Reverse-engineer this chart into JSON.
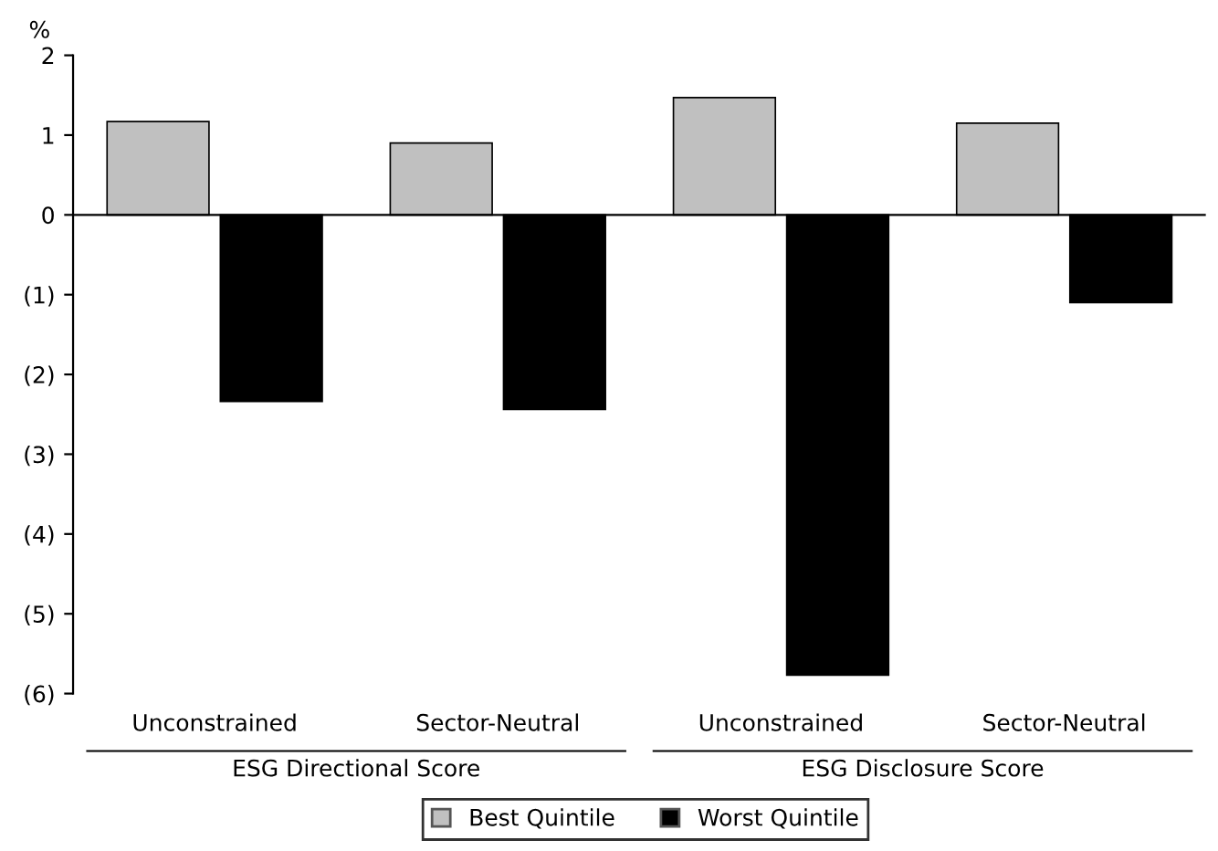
{
  "chart_data": {
    "type": "bar",
    "ylabel": "%",
    "categories": [
      "Unconstrained",
      "Sector-Neutral",
      "Unconstrained",
      "Sector-Neutral"
    ],
    "series": [
      {
        "name": "Best Quintile",
        "color": "#c0c0c0",
        "values": [
          1.17,
          0.9,
          1.47,
          1.15
        ]
      },
      {
        "name": "Worst Quintile",
        "color": "#000000",
        "values": [
          -2.34,
          -2.44,
          -5.77,
          -1.1
        ]
      }
    ],
    "ylim": [
      -6,
      2
    ],
    "yticks": [
      {
        "value": -6,
        "label": "(6)"
      },
      {
        "value": -5,
        "label": "(5)"
      },
      {
        "value": -4,
        "label": "(4)"
      },
      {
        "value": -3,
        "label": "(3)"
      },
      {
        "value": -2,
        "label": "(2)"
      },
      {
        "value": -1,
        "label": "(1)"
      },
      0,
      1,
      2
    ],
    "annotations": [
      "ESG Directional Score",
      "ESG Disclosure Score"
    ],
    "ref_lines": [
      {
        "axis": "y",
        "value": 0,
        "color": "#000000"
      }
    ],
    "legend": "bottom",
    "grid": false
  }
}
